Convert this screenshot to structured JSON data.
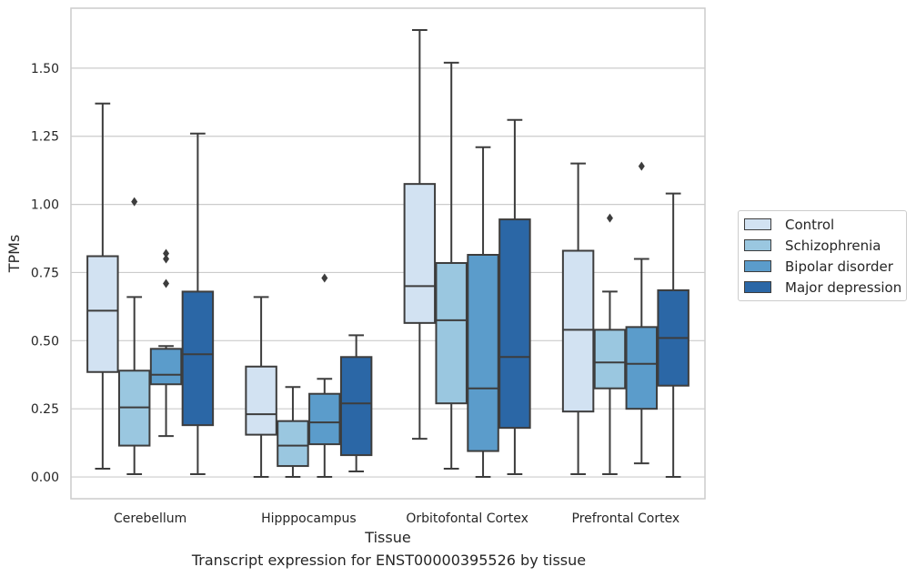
{
  "chart_data": {
    "type": "box",
    "title": "",
    "caption": "Transcript expression for ENST00000395526 by tissue",
    "xlabel": "Tissue",
    "ylabel": "TPMs",
    "ylim": [
      -0.08,
      1.72
    ],
    "yticks": [
      "0.00",
      "0.25",
      "0.50",
      "0.75",
      "1.00",
      "1.25",
      "1.50"
    ],
    "grid": true,
    "legend_position": "right",
    "categories": [
      "Cerebellum",
      "Hipppocampus",
      "Orbitofontal Cortex",
      "Prefrontal Cortex"
    ],
    "series": [
      {
        "name": "Control",
        "color": "#d2e2f2",
        "boxes": [
          {
            "whislo": 0.03,
            "q1": 0.385,
            "med": 0.61,
            "q3": 0.81,
            "whishi": 1.37,
            "fliers": []
          },
          {
            "whislo": 0.0,
            "q1": 0.155,
            "med": 0.23,
            "q3": 0.405,
            "whishi": 0.66,
            "fliers": []
          },
          {
            "whislo": 0.14,
            "q1": 0.565,
            "med": 0.7,
            "q3": 1.075,
            "whishi": 1.64,
            "fliers": []
          },
          {
            "whislo": 0.01,
            "q1": 0.24,
            "med": 0.54,
            "q3": 0.83,
            "whishi": 1.15,
            "fliers": []
          }
        ]
      },
      {
        "name": "Schizophrenia",
        "color": "#9ac7e0",
        "boxes": [
          {
            "whislo": 0.01,
            "q1": 0.115,
            "med": 0.255,
            "q3": 0.39,
            "whishi": 0.66,
            "fliers": [
              1.01
            ]
          },
          {
            "whislo": 0.0,
            "q1": 0.04,
            "med": 0.115,
            "q3": 0.205,
            "whishi": 0.33,
            "fliers": []
          },
          {
            "whislo": 0.03,
            "q1": 0.27,
            "med": 0.575,
            "q3": 0.785,
            "whishi": 1.52,
            "fliers": []
          },
          {
            "whislo": 0.01,
            "q1": 0.325,
            "med": 0.42,
            "q3": 0.54,
            "whishi": 0.68,
            "fliers": [
              0.95
            ]
          }
        ]
      },
      {
        "name": "Bipolar disorder",
        "color": "#5b9ccb",
        "boxes": [
          {
            "whislo": 0.15,
            "q1": 0.34,
            "med": 0.375,
            "q3": 0.47,
            "whishi": 0.48,
            "fliers": [
              0.71,
              0.8,
              0.82
            ]
          },
          {
            "whislo": 0.0,
            "q1": 0.12,
            "med": 0.2,
            "q3": 0.305,
            "whishi": 0.36,
            "fliers": [
              0.73
            ]
          },
          {
            "whislo": 0.0,
            "q1": 0.095,
            "med": 0.325,
            "q3": 0.815,
            "whishi": 1.21,
            "fliers": []
          },
          {
            "whislo": 0.05,
            "q1": 0.25,
            "med": 0.415,
            "q3": 0.55,
            "whishi": 0.8,
            "fliers": [
              1.14
            ]
          }
        ]
      },
      {
        "name": "Major depression",
        "color": "#2b67a6",
        "boxes": [
          {
            "whislo": 0.01,
            "q1": 0.19,
            "med": 0.45,
            "q3": 0.68,
            "whishi": 1.26,
            "fliers": []
          },
          {
            "whislo": 0.02,
            "q1": 0.08,
            "med": 0.27,
            "q3": 0.44,
            "whishi": 0.52,
            "fliers": []
          },
          {
            "whislo": 0.01,
            "q1": 0.18,
            "med": 0.44,
            "q3": 0.945,
            "whishi": 1.31,
            "fliers": []
          },
          {
            "whislo": 0.0,
            "q1": 0.335,
            "med": 0.51,
            "q3": 0.685,
            "whishi": 1.04,
            "fliers": []
          }
        ]
      }
    ]
  }
}
